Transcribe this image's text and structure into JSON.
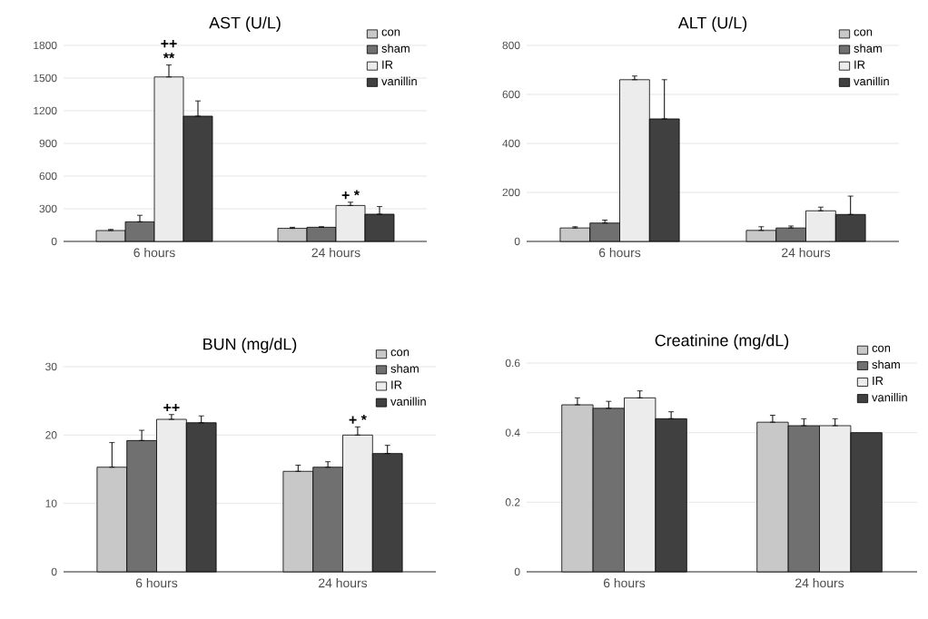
{
  "chart_data": [
    {
      "type": "bar",
      "title": "AST (U/L)",
      "categories": [
        "6 hours",
        "24 hours"
      ],
      "ylim": [
        0,
        1800
      ],
      "yticks": [
        0,
        300,
        600,
        900,
        1200,
        1500,
        1800
      ],
      "grid": "y",
      "legend": "top right",
      "series": [
        {
          "name": "con",
          "color": "#c8c8c8",
          "values": [
            100,
            120
          ],
          "errors": [
            [
              100,
              110
            ],
            [
              120,
              130
            ]
          ]
        },
        {
          "name": "sham",
          "color": "#707070",
          "values": [
            180,
            130
          ],
          "errors": [
            [
              180,
              240
            ],
            [
              130,
              135
            ]
          ]
        },
        {
          "name": "IR",
          "color": "#ececec",
          "values": [
            1510,
            330
          ],
          "errors": [
            [
              1510,
              1620
            ],
            [
              330,
              360
            ]
          ]
        },
        {
          "name": "vanillin",
          "color": "#404040",
          "values": [
            1150,
            250
          ],
          "errors": [
            [
              1150,
              1290
            ],
            [
              250,
              320
            ]
          ]
        }
      ],
      "annotations": [
        "**",
        "++",
        {
          "text": "+ *",
          "x": "24 hours",
          "y": 360
        }
      ]
    },
    {
      "type": "bar",
      "title": "ALT (U/L)",
      "categories": [
        "6 hours",
        "24 hours"
      ],
      "ylim": [
        0,
        800
      ],
      "yticks": [
        0,
        200,
        400,
        600,
        800
      ],
      "grid": "y",
      "legend": "top right",
      "series": [
        {
          "name": "con",
          "color": "#c8c8c8",
          "values": [
            55,
            45
          ],
          "errors": [
            [
              55,
              60
            ],
            [
              45,
              60
            ]
          ]
        },
        {
          "name": "sham",
          "color": "#707070",
          "values": [
            75,
            55
          ],
          "errors": [
            [
              75,
              87
            ],
            [
              55,
              63
            ]
          ]
        },
        {
          "name": "IR",
          "color": "#ececec",
          "values": [
            660,
            125
          ],
          "errors": [
            [
              660,
              675
            ],
            [
              125,
              140
            ]
          ]
        },
        {
          "name": "vanillin",
          "color": "#404040",
          "values": [
            500,
            110
          ],
          "errors": [
            [
              500,
              660
            ],
            [
              110,
              185
            ]
          ]
        }
      ]
    },
    {
      "type": "bar",
      "title": "BUN (mg/dL)",
      "categories": [
        "6 hours",
        "24 hours"
      ],
      "ylim": [
        0,
        30
      ],
      "yticks": [
        0,
        10,
        20,
        30
      ],
      "grid": "y",
      "legend": "top right",
      "series": [
        {
          "name": "con",
          "color": "#c8c8c8",
          "values": [
            15.3,
            14.7
          ],
          "errors": [
            [
              15.3,
              18.9
            ],
            [
              14.7,
              15.6
            ]
          ]
        },
        {
          "name": "sham",
          "color": "#707070",
          "values": [
            19.2,
            15.3
          ],
          "errors": [
            [
              19.2,
              20.7
            ],
            [
              15.3,
              16.1
            ]
          ]
        },
        {
          "name": "IR",
          "color": "#ececec",
          "values": [
            22.3,
            20.0
          ],
          "errors": [
            [
              22.3,
              23.0
            ],
            [
              20.0,
              21.2
            ]
          ]
        },
        {
          "name": "vanillin",
          "color": "#404040",
          "values": [
            21.8,
            17.3
          ],
          "errors": [
            [
              21.8,
              22.8
            ],
            [
              17.3,
              18.5
            ]
          ]
        }
      ],
      "annotations": [
        {
          "text": "++",
          "x": "6 hours",
          "y": 23.0
        },
        {
          "text": "+ *",
          "x": "24 hours",
          "y": 21.2
        }
      ]
    },
    {
      "type": "bar",
      "title": "Creatinine (mg/dL)",
      "categories": [
        "6 hours",
        "24 hours"
      ],
      "ylim": [
        0,
        0.6
      ],
      "yticks": [
        0,
        0.2,
        0.4,
        0.6
      ],
      "grid": "y",
      "legend": "top right",
      "series": [
        {
          "name": "con",
          "color": "#c8c8c8",
          "values": [
            0.48,
            0.43
          ],
          "errors": [
            [
              0.48,
              0.5
            ],
            [
              0.43,
              0.45
            ]
          ]
        },
        {
          "name": "sham",
          "color": "#707070",
          "values": [
            0.47,
            0.42
          ],
          "errors": [
            [
              0.47,
              0.49
            ],
            [
              0.42,
              0.44
            ]
          ]
        },
        {
          "name": "IR",
          "color": "#ececec",
          "values": [
            0.5,
            0.42
          ],
          "errors": [
            [
              0.5,
              0.52
            ],
            [
              0.42,
              0.44
            ]
          ]
        },
        {
          "name": "vanillin",
          "color": "#404040",
          "values": [
            0.44,
            0.4
          ],
          "errors": [
            [
              0.44,
              0.46
            ],
            null
          ]
        }
      ]
    }
  ]
}
